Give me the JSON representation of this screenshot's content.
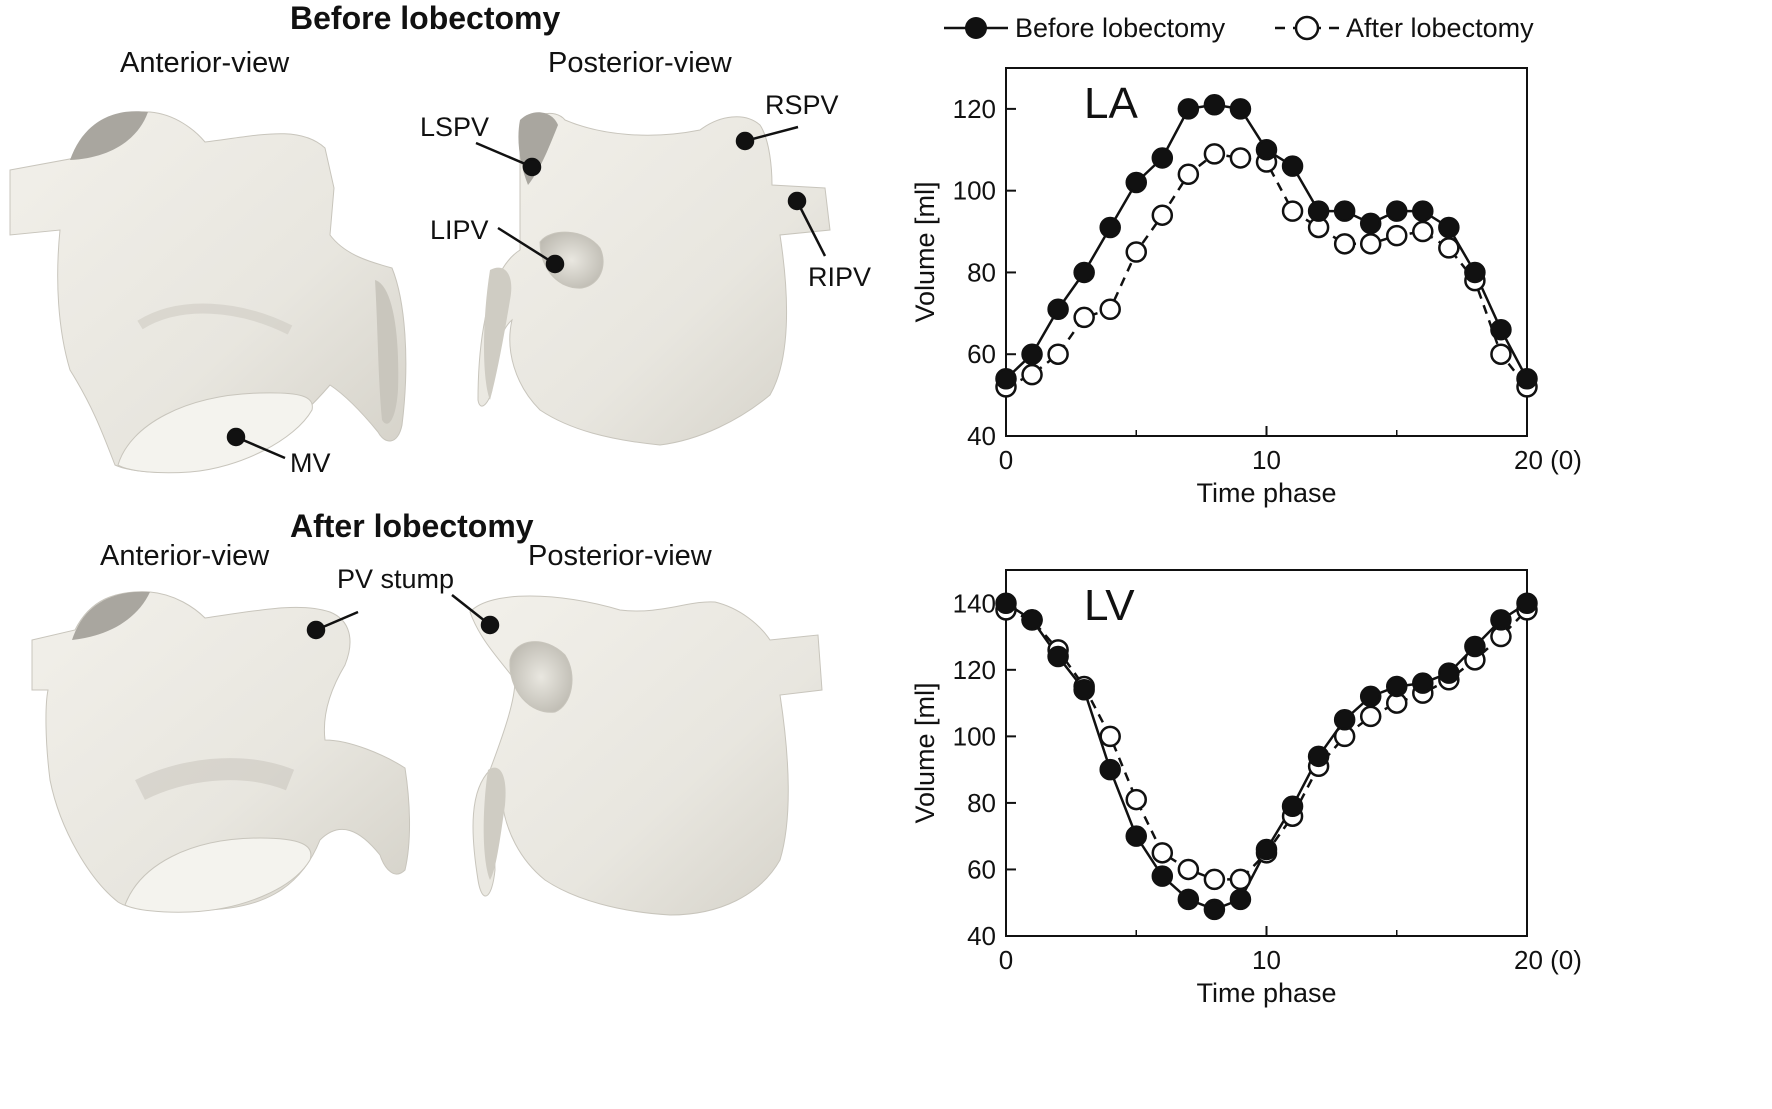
{
  "headings": {
    "before": "Before lobectomy",
    "after": "After lobectomy"
  },
  "views": {
    "anterior": "Anterior-view",
    "posterior": "Posterior-view"
  },
  "labels": {
    "lspv": "LSPV",
    "rspv": "RSPV",
    "lipv": "LIPV",
    "ripv": "RIPV",
    "mv": "MV",
    "pv_stump": "PV stump"
  },
  "legend": {
    "before": "Before lobectomy",
    "after": "After lobectomy"
  },
  "chart_data": [
    {
      "type": "line",
      "title": "LA",
      "xlabel": "Time phase",
      "ylabel": "Volume [ml]",
      "xlim": [
        0,
        20
      ],
      "ylim": [
        40,
        130
      ],
      "xticks": [
        "0",
        "10",
        "20 (0)"
      ],
      "yticks": [
        "40",
        "60",
        "80",
        "100",
        "120"
      ],
      "x": [
        0,
        1,
        2,
        3,
        4,
        5,
        6,
        7,
        8,
        9,
        10,
        11,
        12,
        13,
        14,
        15,
        16,
        17,
        18,
        19,
        20
      ],
      "series": [
        {
          "name": "Before lobectomy",
          "marker": "filled",
          "line": "solid",
          "values": [
            54,
            60,
            71,
            80,
            91,
            102,
            108,
            120,
            121,
            120,
            110,
            106,
            95,
            95,
            92,
            95,
            95,
            91,
            80,
            66,
            54
          ]
        },
        {
          "name": "After lobectomy",
          "marker": "open",
          "line": "dashed",
          "values": [
            52,
            55,
            60,
            69,
            71,
            85,
            94,
            104,
            109,
            108,
            107,
            95,
            91,
            87,
            87,
            89,
            90,
            86,
            78,
            60,
            52
          ]
        }
      ]
    },
    {
      "type": "line",
      "title": "LV",
      "xlabel": "Time phase",
      "ylabel": "Volume [ml]",
      "xlim": [
        0,
        20
      ],
      "ylim": [
        40,
        150
      ],
      "xticks": [
        "0",
        "10",
        "20 (0)"
      ],
      "yticks": [
        "40",
        "60",
        "80",
        "100",
        "120",
        "140"
      ],
      "x": [
        0,
        1,
        2,
        3,
        4,
        5,
        6,
        7,
        8,
        9,
        10,
        11,
        12,
        13,
        14,
        15,
        16,
        17,
        18,
        19,
        20
      ],
      "series": [
        {
          "name": "Before lobectomy",
          "marker": "filled",
          "line": "solid",
          "values": [
            140,
            135,
            124,
            114,
            90,
            70,
            58,
            51,
            48,
            51,
            66,
            79,
            94,
            105,
            112,
            115,
            116,
            119,
            127,
            135,
            140
          ]
        },
        {
          "name": "After lobectomy",
          "marker": "open",
          "line": "dashed",
          "values": [
            138,
            135,
            126,
            115,
            100,
            81,
            65,
            60,
            57,
            57,
            65,
            76,
            91,
            100,
            106,
            110,
            113,
            117,
            123,
            130,
            138
          ]
        }
      ]
    }
  ]
}
